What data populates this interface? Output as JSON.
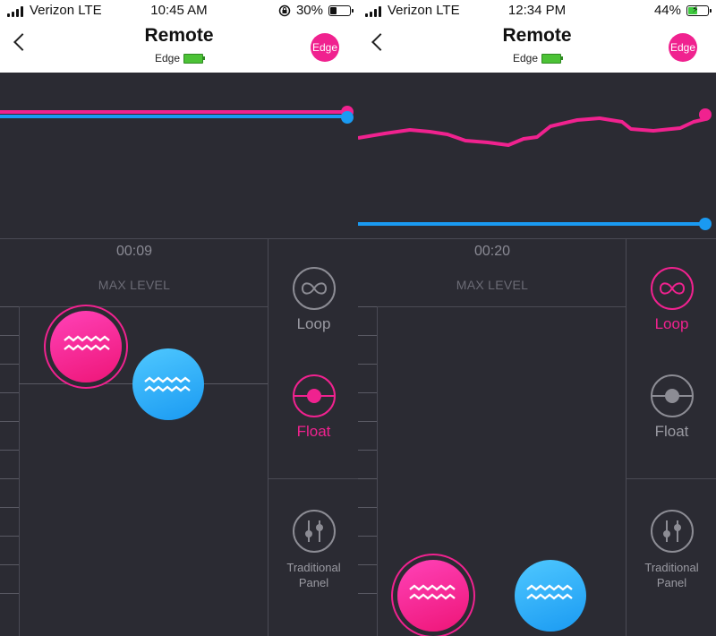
{
  "screens": [
    {
      "status": {
        "carrier": "Verizon LTE",
        "time": "10:45 AM",
        "battery": "30%",
        "battery_level": 0.3,
        "charging": false,
        "rotation_lock": true
      },
      "header": {
        "title": "Remote",
        "subtitle": "Edge",
        "badge": "Edge"
      },
      "timer": "00:09",
      "max_level_label": "MAX LEVEL",
      "modes": {
        "loop_label": "Loop",
        "float_label": "Float",
        "panel_label": "Traditional Panel",
        "active": "float"
      },
      "graph": {
        "pink_line_level": 0.78,
        "blue_line_level": 0.73
      },
      "knobs": {
        "pink_level": 0.84,
        "blue_level": 0.75
      }
    },
    {
      "status": {
        "carrier": "Verizon LTE",
        "time": "12:34 PM",
        "battery": "44%",
        "battery_level": 0.44,
        "charging": true,
        "rotation_lock": false
      },
      "header": {
        "title": "Remote",
        "subtitle": "Edge",
        "badge": "Edge"
      },
      "timer": "00:20",
      "max_level_label": "MAX LEVEL",
      "modes": {
        "loop_label": "Loop",
        "float_label": "Float",
        "panel_label": "Traditional Panel",
        "active": "loop"
      },
      "graph": {
        "blue_line_level": 0.08
      },
      "knobs": {
        "pink_level": 0.0,
        "blue_level": 0.0
      }
    }
  ],
  "colors": {
    "accent_pink": "#f0228f",
    "accent_blue": "#1a9af2",
    "background": "#2b2b33"
  }
}
